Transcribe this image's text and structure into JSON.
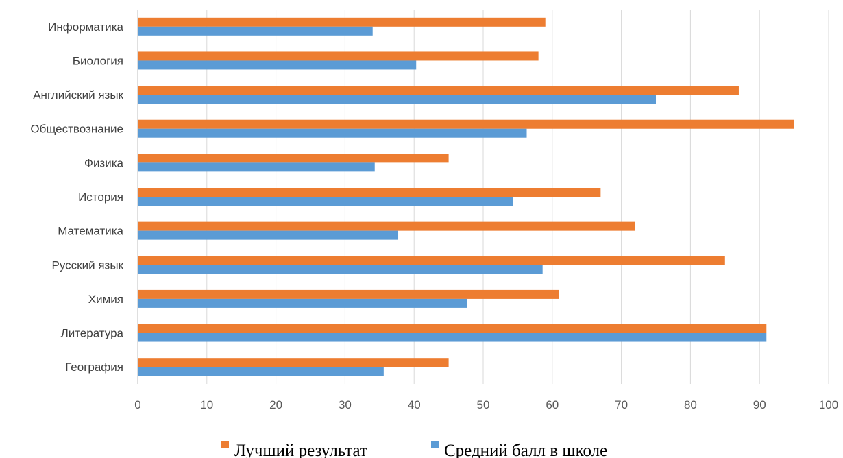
{
  "chart_data": {
    "type": "bar",
    "orientation": "horizontal",
    "categories": [
      "Информатика",
      "Биология",
      "Английский язык",
      "Обществознание",
      "Физика",
      "История",
      "Математика",
      "Русский язык",
      "Химия",
      "Литература",
      "География"
    ],
    "series": [
      {
        "name": "Лучший результат",
        "color": "#ed7d31",
        "values": [
          59,
          58,
          87,
          95,
          45,
          67,
          72,
          85,
          61,
          91,
          45
        ]
      },
      {
        "name": "Средний балл в школе",
        "color": "#5b9bd5",
        "values": [
          34,
          40.3,
          75,
          56.3,
          34.3,
          54.3,
          37.7,
          58.6,
          47.7,
          91,
          35.6
        ]
      }
    ],
    "x_ticks": [
      "0",
      "10",
      "20",
      "30",
      "40",
      "50",
      "60",
      "70",
      "80",
      "90",
      "100"
    ],
    "xlim": [
      0,
      100
    ],
    "grid": "vertical",
    "legend_position": "bottom"
  }
}
